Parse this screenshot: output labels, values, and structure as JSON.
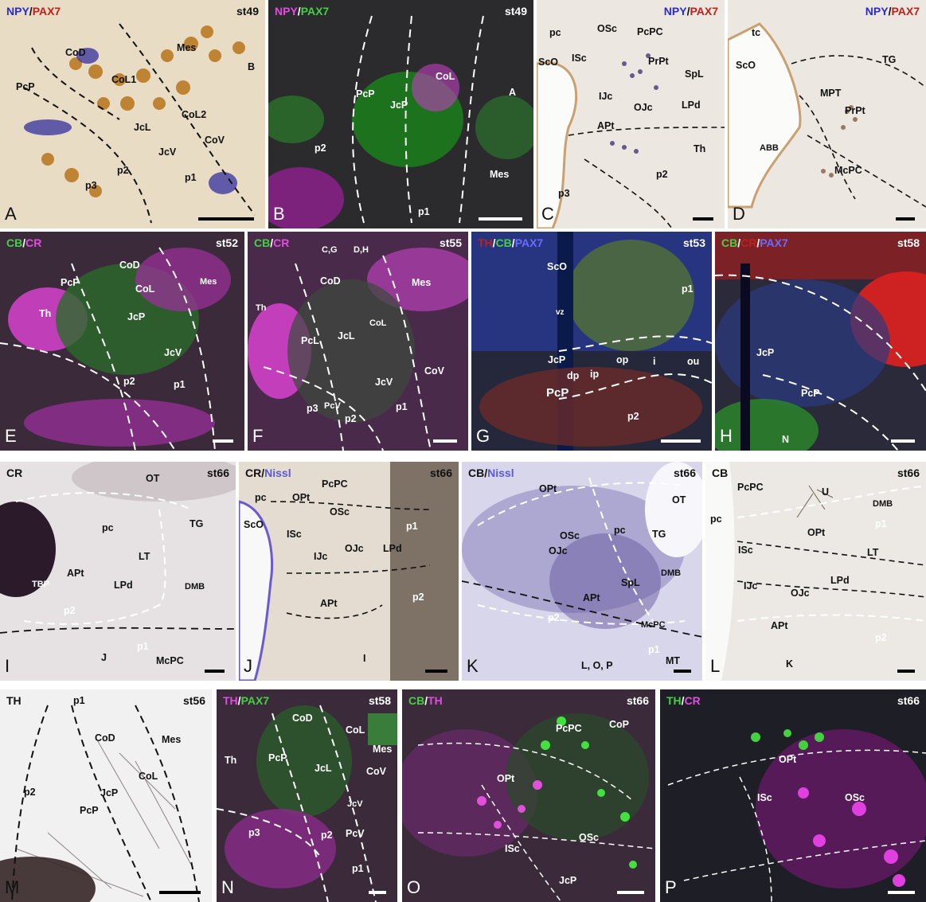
{
  "panels": {
    "A": {
      "letter": "A",
      "stage": "st49",
      "stain": [
        {
          "t": "NPY",
          "c": "c-blue"
        },
        {
          "t": "/",
          "c": "c-blk"
        },
        {
          "t": "PAX7",
          "c": "c-red"
        }
      ],
      "regions": [
        "CoD",
        "Mes",
        "CoL1",
        "PcP",
        "B",
        "CoL2",
        "JcL",
        "CoV",
        "JcV",
        "p2",
        "p1",
        "p3"
      ]
    },
    "B": {
      "letter": "B",
      "stage": "st49",
      "stain": [
        {
          "t": "NPY",
          "c": "c-mag"
        },
        {
          "t": "/",
          "c": "c-wht"
        },
        {
          "t": "PAX7",
          "c": "c-grn"
        }
      ],
      "regions": [
        "PcP",
        "JcP",
        "CoL",
        "A",
        "p2",
        "Mes",
        "p1"
      ]
    },
    "C": {
      "letter": "C",
      "stage": "",
      "stain": [
        {
          "t": "NPY",
          "c": "c-blue"
        },
        {
          "t": "/",
          "c": "c-blk"
        },
        {
          "t": "PAX7",
          "c": "c-red"
        }
      ],
      "regions": [
        "pc",
        "OSc",
        "PcPC",
        "ScO",
        "ISc",
        "PrPt",
        "SpL",
        "IJc",
        "OJc",
        "LPd",
        "APt",
        "Th",
        "p2",
        "p3"
      ]
    },
    "D": {
      "letter": "D",
      "stage": "",
      "stain": [
        {
          "t": "NPY",
          "c": "c-blue"
        },
        {
          "t": "/",
          "c": "c-blk"
        },
        {
          "t": "PAX7",
          "c": "c-red"
        }
      ],
      "regions": [
        "tc",
        "ScO",
        "TG",
        "MPT",
        "PrPt",
        "ABB",
        "McPC"
      ]
    },
    "E": {
      "letter": "E",
      "stage": "st52",
      "stain": [
        {
          "t": "CB",
          "c": "c-grn"
        },
        {
          "t": "/",
          "c": "c-wht"
        },
        {
          "t": "CR",
          "c": "c-mag"
        }
      ],
      "regions": [
        "CoD",
        "Mes",
        "PcP",
        "CoL",
        "Th",
        "JcP",
        "JcV",
        "p2",
        "p1"
      ]
    },
    "F": {
      "letter": "F",
      "stage": "st55",
      "stain": [
        {
          "t": "CB",
          "c": "c-grn"
        },
        {
          "t": "/",
          "c": "c-wht"
        },
        {
          "t": "CR",
          "c": "c-mag"
        }
      ],
      "regions": [
        "C,G",
        "D,H",
        "CoD",
        "Mes",
        "Th",
        "CoL",
        "PcL",
        "JcL",
        "CoV",
        "JcV",
        "PcV",
        "p1",
        "p2",
        "p3"
      ]
    },
    "G": {
      "letter": "G",
      "stage": "st53",
      "stain": [
        {
          "t": "TH",
          "c": "c-red"
        },
        {
          "t": "/",
          "c": "c-wht"
        },
        {
          "t": "CB",
          "c": "c-grn"
        },
        {
          "t": "/",
          "c": "c-wht"
        },
        {
          "t": "PAX7",
          "c": "c-pax-blue"
        }
      ],
      "regions": [
        "ScO",
        "p1",
        "vz",
        "JcP",
        "op",
        "i",
        "ou",
        "dp",
        "ip",
        "PcP",
        "p2"
      ]
    },
    "H": {
      "letter": "H",
      "stage": "st58",
      "stain": [
        {
          "t": "CB",
          "c": "c-grn"
        },
        {
          "t": "/",
          "c": "c-wht"
        },
        {
          "t": "CR",
          "c": "c-red"
        },
        {
          "t": "/",
          "c": "c-wht"
        },
        {
          "t": "PAX7",
          "c": "c-pax-blue"
        }
      ],
      "regions": [
        "JcP",
        "PcP",
        "N"
      ]
    },
    "I": {
      "letter": "I",
      "stage": "st66",
      "stain": [
        {
          "t": "CR",
          "c": "c-blk"
        }
      ],
      "regions": [
        "OT",
        "pc",
        "TG",
        "LT",
        "APt",
        "TBP",
        "LPd",
        "DMB",
        "p2",
        "J",
        "p1",
        "McPC"
      ]
    },
    "J": {
      "letter": "J",
      "stage": "st66",
      "stain": [
        {
          "t": "CR",
          "c": "c-blk"
        },
        {
          "t": "/",
          "c": "c-blk"
        },
        {
          "t": "Nissl",
          "c": "c-nissl"
        }
      ],
      "regions": [
        "PcPC",
        "pc",
        "OPt",
        "OSc",
        "ScO",
        "ISc",
        "p1",
        "IJc",
        "OJc",
        "LPd",
        "APt",
        "p2",
        "I"
      ]
    },
    "K": {
      "letter": "K",
      "stage": "st66",
      "stain": [
        {
          "t": "CB",
          "c": "c-blk"
        },
        {
          "t": "/",
          "c": "c-blk"
        },
        {
          "t": "Nissl",
          "c": "c-nissl"
        }
      ],
      "regions": [
        "OPt",
        "OT",
        "OSc",
        "pc",
        "TG",
        "OJc",
        "DMB",
        "SpL",
        "APt",
        "p2",
        "McPC",
        "p1",
        "MT",
        "L, O, P"
      ]
    },
    "L": {
      "letter": "L",
      "stage": "st66",
      "stain": [
        {
          "t": "CB",
          "c": "c-blk"
        }
      ],
      "regions": [
        "PcPC",
        "U",
        "DMB",
        "pc",
        "p1",
        "OPt",
        "ISc",
        "LT",
        "LPd",
        "IJc",
        "OJc",
        "APt",
        "p2",
        "K"
      ]
    },
    "M": {
      "letter": "M",
      "stage": "st56",
      "stain": [
        {
          "t": "TH",
          "c": "c-blk"
        }
      ],
      "regions": [
        "p1",
        "CoD",
        "Mes",
        "CoL",
        "p2",
        "JcP",
        "PcP"
      ]
    },
    "N": {
      "letter": "N",
      "stage": "st58",
      "stain": [
        {
          "t": "TH",
          "c": "c-mag"
        },
        {
          "t": "/",
          "c": "c-wht"
        },
        {
          "t": "PAX7",
          "c": "c-grn"
        }
      ],
      "regions": [
        "CoD",
        "CoL",
        "Mes",
        "Th",
        "PcP",
        "JcL",
        "CoV",
        "JcV",
        "p3",
        "p2",
        "PcV",
        "p1"
      ]
    },
    "O": {
      "letter": "O",
      "stage": "st66",
      "stain": [
        {
          "t": "CB",
          "c": "c-grn"
        },
        {
          "t": "/",
          "c": "c-wht"
        },
        {
          "t": "TH",
          "c": "c-mag"
        }
      ],
      "regions": [
        "PcPC",
        "CoP",
        "OPt",
        "ISc",
        "OSc",
        "JcP"
      ]
    },
    "P": {
      "letter": "P",
      "stage": "st66",
      "stain": [
        {
          "t": "TH",
          "c": "c-grn"
        },
        {
          "t": "/",
          "c": "c-wht"
        },
        {
          "t": "CR",
          "c": "c-mag"
        }
      ],
      "regions": [
        "OPt",
        "ISc",
        "OSc"
      ]
    }
  }
}
